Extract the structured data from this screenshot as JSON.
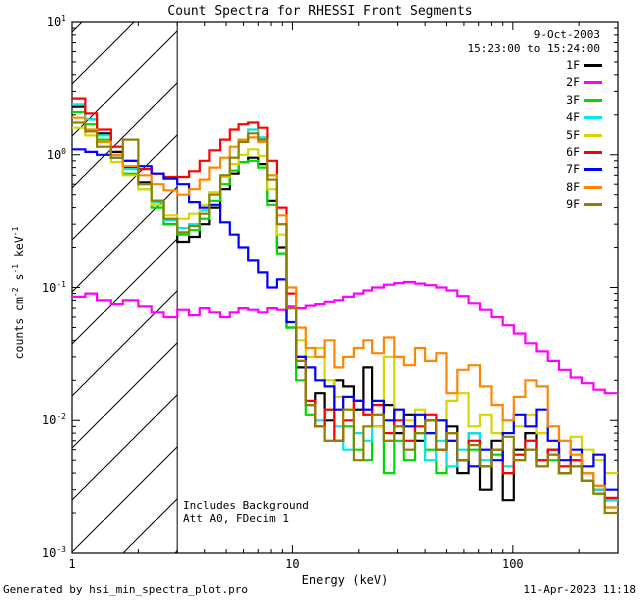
{
  "chart_data": {
    "type": "line",
    "subtype": "step-histogram-log-log",
    "title": "Count Spectra for RHESSI Front Segments",
    "xlabel": "Energy (keV)",
    "ylabel": "counts cm^-2 s^-1 keV^-1",
    "xlim": [
      1,
      300
    ],
    "ylim": [
      0.001,
      10
    ],
    "xscale": "log",
    "yscale": "log",
    "x_tick_labels": [
      {
        "label": "1",
        "value": 1
      },
      {
        "label": "10",
        "value": 10
      },
      {
        "label": "100",
        "value": 100
      }
    ],
    "y_tick_labels": [
      {
        "label": "10^1",
        "value": 10
      },
      {
        "label": "10^0",
        "value": 1
      },
      {
        "label": "10^-1",
        "value": 0.1
      },
      {
        "label": "10^-2",
        "value": 0.01
      },
      {
        "label": "10^-3",
        "value": 0.001
      }
    ],
    "annotation": {
      "line1": "Includes Background",
      "line2": "Att A0, FDecim 1"
    },
    "legend": {
      "date": "9-Oct-2003",
      "time": "15:23:00 to 15:24:00",
      "position": "top-right"
    },
    "hatched_region_kev": [
      1,
      3
    ],
    "bin_edges_kev": [
      1.0,
      1.15,
      1.3,
      1.5,
      1.7,
      2.0,
      2.3,
      2.6,
      3.0,
      3.4,
      3.8,
      4.2,
      4.7,
      5.2,
      5.7,
      6.3,
      7.0,
      7.7,
      8.5,
      9.4,
      10.4,
      11.5,
      12.7,
      14,
      15.5,
      17,
      19,
      21,
      23,
      26,
      29,
      32,
      36,
      40,
      45,
      50,
      56,
      63,
      71,
      80,
      90,
      101,
      114,
      128,
      144,
      162,
      183,
      206,
      232,
      261,
      300
    ],
    "series": [
      {
        "name": "1F",
        "color": "#000000",
        "values": [
          2.3,
          1.85,
          1.45,
          1.05,
          0.8,
          0.62,
          0.45,
          0.3,
          0.22,
          0.24,
          0.3,
          0.4,
          0.55,
          0.72,
          0.88,
          0.95,
          0.85,
          0.45,
          0.2,
          0.05,
          0.025,
          0.013,
          0.016,
          0.01,
          0.02,
          0.018,
          0.012,
          0.025,
          0.009,
          0.013,
          0.008,
          0.011,
          0.007,
          0.01,
          0.006,
          0.009,
          0.004,
          0.008,
          0.003,
          0.007,
          0.0025,
          0.006,
          0.008,
          0.005,
          0.006,
          0.004,
          0.005,
          0.0035,
          0.003,
          0.0025
        ]
      },
      {
        "name": "2F",
        "color": "#ff00ff",
        "values": [
          0.085,
          0.09,
          0.08,
          0.075,
          0.08,
          0.072,
          0.065,
          0.06,
          0.068,
          0.062,
          0.07,
          0.065,
          0.06,
          0.065,
          0.07,
          0.068,
          0.065,
          0.07,
          0.068,
          0.072,
          0.07,
          0.073,
          0.075,
          0.078,
          0.08,
          0.085,
          0.09,
          0.095,
          0.1,
          0.105,
          0.108,
          0.11,
          0.107,
          0.104,
          0.1,
          0.095,
          0.086,
          0.076,
          0.068,
          0.06,
          0.052,
          0.045,
          0.038,
          0.033,
          0.028,
          0.024,
          0.021,
          0.019,
          0.017,
          0.016
        ]
      },
      {
        "name": "3F",
        "color": "#00d800",
        "values": [
          2.1,
          1.7,
          1.3,
          0.95,
          0.72,
          0.55,
          0.4,
          0.3,
          0.25,
          0.27,
          0.33,
          0.45,
          0.6,
          0.76,
          0.88,
          0.9,
          0.8,
          0.42,
          0.18,
          0.05,
          0.02,
          0.011,
          0.009,
          0.012,
          0.007,
          0.009,
          0.006,
          0.005,
          0.009,
          0.004,
          0.007,
          0.005,
          0.008,
          0.006,
          0.004,
          0.007,
          0.005,
          0.006,
          0.0045,
          0.0055,
          0.004,
          0.005,
          0.006,
          0.0045,
          0.005,
          0.004,
          0.0045,
          0.0035,
          0.0028,
          0.0022
        ]
      },
      {
        "name": "4F",
        "color": "#00e8e8",
        "values": [
          2.4,
          1.85,
          1.4,
          1.0,
          0.78,
          0.6,
          0.44,
          0.32,
          0.28,
          0.3,
          0.38,
          0.52,
          0.7,
          0.95,
          1.25,
          1.55,
          1.35,
          0.7,
          0.3,
          0.07,
          0.028,
          0.013,
          0.01,
          0.007,
          0.009,
          0.006,
          0.008,
          0.007,
          0.011,
          0.007,
          0.009,
          0.006,
          0.008,
          0.005,
          0.007,
          0.0045,
          0.006,
          0.008,
          0.005,
          0.006,
          0.0045,
          0.0055,
          0.007,
          0.005,
          0.0055,
          0.0045,
          0.005,
          0.004,
          0.003,
          0.0025
        ]
      },
      {
        "name": "5F",
        "color": "#d6d600",
        "values": [
          1.6,
          1.4,
          1.15,
          0.88,
          0.7,
          0.55,
          0.42,
          0.35,
          0.33,
          0.36,
          0.42,
          0.52,
          0.68,
          0.85,
          1.0,
          1.1,
          0.98,
          0.55,
          0.25,
          0.07,
          0.04,
          0.03,
          0.035,
          0.02,
          0.015,
          0.012,
          0.014,
          0.011,
          0.009,
          0.03,
          0.012,
          0.01,
          0.012,
          0.008,
          0.01,
          0.014,
          0.016,
          0.009,
          0.011,
          0.008,
          0.01,
          0.009,
          0.011,
          0.008,
          0.009,
          0.007,
          0.0075,
          0.006,
          0.005,
          0.004
        ]
      },
      {
        "name": "6F",
        "color": "#ff0000",
        "values": [
          2.65,
          2.05,
          1.55,
          1.15,
          0.9,
          0.78,
          0.72,
          0.68,
          0.68,
          0.75,
          0.9,
          1.08,
          1.3,
          1.55,
          1.7,
          1.75,
          1.6,
          0.9,
          0.4,
          0.09,
          0.03,
          0.014,
          0.009,
          0.012,
          0.007,
          0.01,
          0.014,
          0.011,
          0.013,
          0.008,
          0.01,
          0.007,
          0.009,
          0.011,
          0.006,
          0.008,
          0.005,
          0.007,
          0.0045,
          0.006,
          0.004,
          0.0055,
          0.007,
          0.005,
          0.006,
          0.0045,
          0.005,
          0.004,
          0.0032,
          0.0026
        ]
      },
      {
        "name": "7F",
        "color": "#0000ff",
        "values": [
          1.1,
          1.05,
          1.0,
          0.95,
          0.9,
          0.82,
          0.72,
          0.66,
          0.6,
          0.44,
          0.4,
          0.42,
          0.31,
          0.25,
          0.2,
          0.16,
          0.13,
          0.1,
          0.115,
          0.055,
          0.03,
          0.025,
          0.02,
          0.018,
          0.012,
          0.015,
          0.014,
          0.012,
          0.014,
          0.01,
          0.012,
          0.009,
          0.011,
          0.008,
          0.01,
          0.007,
          0.005,
          0.0045,
          0.006,
          0.005,
          0.008,
          0.011,
          0.009,
          0.012,
          0.007,
          0.005,
          0.006,
          0.0045,
          0.0055,
          0.003
        ]
      },
      {
        "name": "8F",
        "color": "#ff8700",
        "values": [
          1.9,
          1.55,
          1.25,
          1.0,
          0.82,
          0.7,
          0.6,
          0.54,
          0.5,
          0.55,
          0.65,
          0.8,
          0.95,
          1.15,
          1.3,
          1.35,
          1.25,
          0.7,
          0.35,
          0.1,
          0.05,
          0.035,
          0.03,
          0.04,
          0.025,
          0.03,
          0.035,
          0.04,
          0.032,
          0.042,
          0.03,
          0.026,
          0.035,
          0.028,
          0.032,
          0.016,
          0.024,
          0.026,
          0.018,
          0.013,
          0.01,
          0.015,
          0.02,
          0.018,
          0.009,
          0.007,
          0.0055,
          0.004,
          0.0032,
          0.0022
        ]
      },
      {
        "name": "9F",
        "color": "#8f8000",
        "values": [
          1.75,
          1.5,
          1.15,
          0.95,
          1.3,
          0.6,
          0.45,
          0.33,
          0.26,
          0.29,
          0.36,
          0.5,
          0.7,
          0.95,
          1.25,
          1.45,
          1.3,
          0.65,
          0.3,
          0.07,
          0.028,
          0.013,
          0.009,
          0.007,
          0.007,
          0.012,
          0.005,
          0.009,
          0.011,
          0.007,
          0.009,
          0.006,
          0.008,
          0.01,
          0.006,
          0.008,
          0.005,
          0.0065,
          0.0045,
          0.006,
          0.0075,
          0.005,
          0.006,
          0.0045,
          0.0055,
          0.004,
          0.0045,
          0.0035,
          0.0028,
          0.002
        ]
      }
    ]
  },
  "footer": {
    "left": "Generated by hsi_min_spectra_plot.pro",
    "right": "11-Apr-2023 11:18"
  }
}
